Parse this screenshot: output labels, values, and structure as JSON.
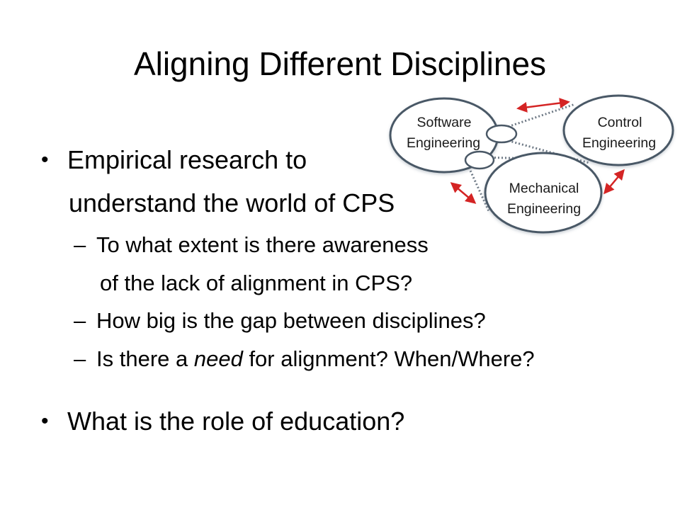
{
  "slide": {
    "title": "Aligning Different Disciplines",
    "bullets": [
      {
        "text_line1": "Empirical research to",
        "text_line2": "understand the world of CPS",
        "subbullets": [
          {
            "line1": "To what extent is there awareness",
            "line2": "of the lack of alignment in CPS?"
          },
          {
            "line1": "How big is the gap between disciplines?"
          },
          {
            "before": "Is there a ",
            "italic": "need",
            "after": " for alignment? When/Where?"
          }
        ]
      },
      {
        "text_line1": "What is the role of education?"
      }
    ],
    "bullet_symbol": "•",
    "sub_bullet_symbol": "–"
  },
  "diagram": {
    "circles": [
      {
        "name": "software",
        "line1": "Software",
        "line2": "Engineering"
      },
      {
        "name": "control",
        "line1": "Control",
        "line2": "Engineering"
      },
      {
        "name": "mechanical",
        "line1": "Mechanical",
        "line2": "Engineering"
      }
    ],
    "colors": {
      "circle_stroke": "#4a5866",
      "dotted": "#6f7a86",
      "arrow": "#d42424"
    }
  }
}
